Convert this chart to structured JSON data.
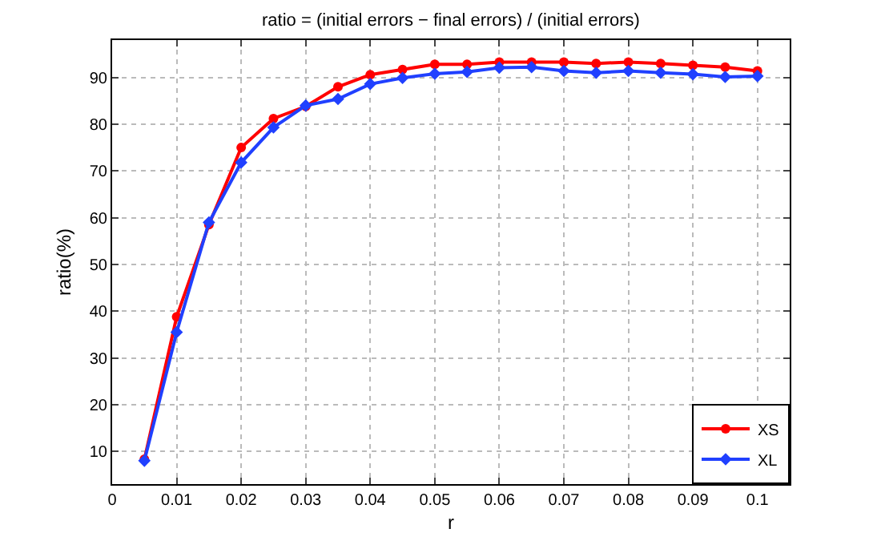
{
  "chart_data": {
    "type": "line",
    "title": "ratio = (initial errors − final errors) / (initial errors)",
    "xlabel": "r",
    "ylabel": "ratio(%)",
    "x": [
      0.005,
      0.01,
      0.015,
      0.02,
      0.025,
      0.03,
      0.035,
      0.04,
      0.045,
      0.05,
      0.055,
      0.06,
      0.065,
      0.07,
      0.075,
      0.08,
      0.085,
      0.09,
      0.095,
      0.1
    ],
    "series": [
      {
        "name": "XS",
        "color": "#ff0000",
        "marker": "circle",
        "values": [
          8.3,
          38.8,
          58.5,
          75,
          81.2,
          83.8,
          88,
          90.6,
          91.7,
          92.8,
          92.8,
          93.3,
          93.3,
          93.3,
          93,
          93.3,
          93,
          92.6,
          92.2,
          91.4
        ]
      },
      {
        "name": "XL",
        "color": "#2040ff",
        "marker": "diamond",
        "values": [
          8,
          35.5,
          59,
          71.8,
          79.3,
          84,
          85.4,
          88.6,
          89.9,
          90.8,
          91.2,
          92.1,
          92.2,
          91.4,
          91,
          91.4,
          91,
          90.7,
          90.1,
          90.3
        ]
      }
    ],
    "xlim": [
      0,
      0.105
    ],
    "xticks": [
      0,
      0.01,
      0.02,
      0.03,
      0.04,
      0.05,
      0.06,
      0.07,
      0.08,
      0.09,
      0.1
    ],
    "ylim": [
      3,
      98
    ],
    "yticks": [
      10,
      20,
      30,
      40,
      50,
      60,
      70,
      80,
      90
    ],
    "grid": true,
    "legend": "bottom right",
    "line_style": "solid"
  }
}
